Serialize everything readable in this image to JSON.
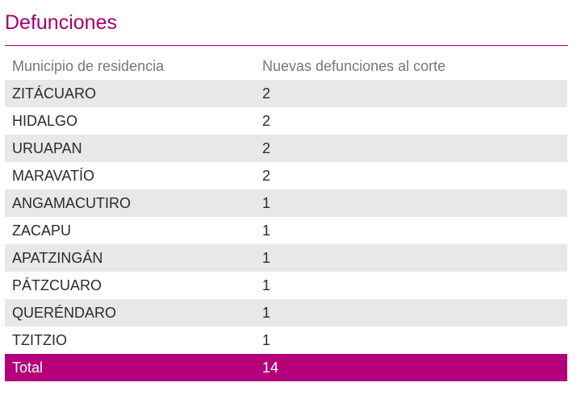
{
  "title": "Defunciones",
  "table": {
    "headers": [
      "Municipio de residencia",
      "Nuevas defunciones al corte"
    ],
    "rows": [
      {
        "municipio": "ZITÁCUARO",
        "defunciones": "2"
      },
      {
        "municipio": "HIDALGO",
        "defunciones": "2"
      },
      {
        "municipio": "URUAPAN",
        "defunciones": "2"
      },
      {
        "municipio": "MARAVATÍO",
        "defunciones": "2"
      },
      {
        "municipio": "ANGAMACUTIRO",
        "defunciones": "1"
      },
      {
        "municipio": "ZACAPU",
        "defunciones": "1"
      },
      {
        "municipio": "APATZINGÁN",
        "defunciones": "1"
      },
      {
        "municipio": "PÁTZCUARO",
        "defunciones": "1"
      },
      {
        "municipio": "QUERÉNDARO",
        "defunciones": "1"
      },
      {
        "municipio": "TZITZIO",
        "defunciones": "1"
      }
    ],
    "total": {
      "label": "Total",
      "value": "14"
    }
  },
  "colors": {
    "accent": "#a3006f",
    "total_row": "#b3007a",
    "stripe": "#e8e8e8"
  }
}
